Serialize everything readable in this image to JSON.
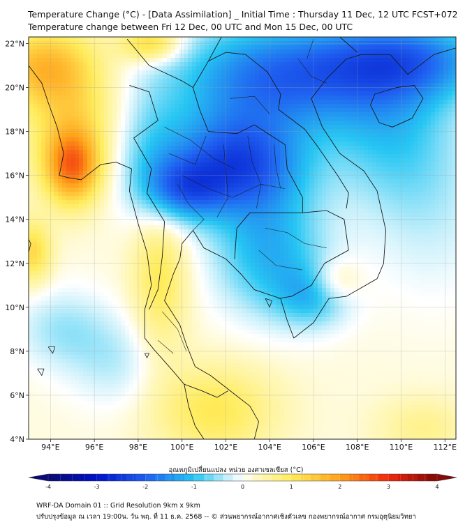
{
  "title_line1": "Temperature Change (°C) - [Data Assimilation] _ Initial Time : Thursday 11 Dec, 12 UTC FCST+072",
  "title_line2": "Temperature change between Fri 12 Dec, 00 UTC and Mon 15 Dec, 00 UTC",
  "map": {
    "lon_range": [
      93,
      112.5
    ],
    "lat_range": [
      4,
      22.3
    ],
    "lon_ticks": [
      {
        "v": 94,
        "label": "94°E"
      },
      {
        "v": 96,
        "label": "96°E"
      },
      {
        "v": 98,
        "label": "98°E"
      },
      {
        "v": 100,
        "label": "100°E"
      },
      {
        "v": 102,
        "label": "102°E"
      },
      {
        "v": 104,
        "label": "104°E"
      },
      {
        "v": 106,
        "label": "106°E"
      },
      {
        "v": 108,
        "label": "108°E"
      },
      {
        "v": 110,
        "label": "110°E"
      },
      {
        "v": 112,
        "label": "112°E"
      }
    ],
    "lat_ticks": [
      {
        "v": 4,
        "label": "4°N"
      },
      {
        "v": 6,
        "label": "6°N"
      },
      {
        "v": 8,
        "label": "8°N"
      },
      {
        "v": 10,
        "label": "10°N"
      },
      {
        "v": 12,
        "label": "12°N"
      },
      {
        "v": 14,
        "label": "14°N"
      },
      {
        "v": 16,
        "label": "16°N"
      },
      {
        "v": 18,
        "label": "18°N"
      },
      {
        "v": 20,
        "label": "20°N"
      },
      {
        "v": 22,
        "label": "22°N"
      }
    ],
    "field_blobs": [
      {
        "lon": 102.5,
        "lat": 16.5,
        "sx": 2.2,
        "sy": 1.6,
        "a": -2.3
      },
      {
        "lon": 104.5,
        "lat": 20.5,
        "sx": 3.5,
        "sy": 1.8,
        "a": -2.0
      },
      {
        "lon": 110.5,
        "lat": 21.3,
        "sx": 2.8,
        "sy": 1.3,
        "a": -1.6
      },
      {
        "lon": 100.0,
        "lat": 15.3,
        "sx": 1.3,
        "sy": 1.0,
        "a": -1.4
      },
      {
        "lon": 104.0,
        "lat": 12.5,
        "sx": 1.8,
        "sy": 2.0,
        "a": -1.3
      },
      {
        "lon": 106.0,
        "lat": 10.5,
        "sx": 1.2,
        "sy": 1.0,
        "a": -1.0
      },
      {
        "lon": 109.5,
        "lat": 18.0,
        "sx": 2.0,
        "sy": 2.5,
        "a": -0.9
      },
      {
        "lon": 111.5,
        "lat": 14.5,
        "sx": 2.0,
        "sy": 3.0,
        "a": -0.4
      },
      {
        "lon": 98.5,
        "lat": 17.0,
        "sx": 1.2,
        "sy": 2.0,
        "a": -0.7
      },
      {
        "lon": 95.0,
        "lat": 16.4,
        "sx": 0.9,
        "sy": 1.2,
        "a": 2.0
      },
      {
        "lon": 95.0,
        "lat": 19.0,
        "sx": 1.6,
        "sy": 2.2,
        "a": 1.0
      },
      {
        "lon": 93.5,
        "lat": 21.0,
        "sx": 1.5,
        "sy": 1.2,
        "a": 1.2
      },
      {
        "lon": 98.6,
        "lat": 22.0,
        "sx": 1.0,
        "sy": 0.6,
        "a": 1.3
      },
      {
        "lon": 99.0,
        "lat": 11.3,
        "sx": 0.9,
        "sy": 2.5,
        "a": 0.9
      },
      {
        "lon": 101.5,
        "lat": 5.3,
        "sx": 2.0,
        "sy": 1.5,
        "a": 0.9
      },
      {
        "lon": 107.0,
        "lat": 11.2,
        "sx": 0.8,
        "sy": 0.7,
        "a": 0.7
      },
      {
        "lon": 94.5,
        "lat": 9.0,
        "sx": 1.5,
        "sy": 1.3,
        "a": -0.6
      },
      {
        "lon": 97.0,
        "lat": 7.5,
        "sx": 1.5,
        "sy": 1.5,
        "a": -0.5
      },
      {
        "lon": 111.0,
        "lat": 4.5,
        "sx": 1.5,
        "sy": 1.0,
        "a": 0.5
      },
      {
        "lon": 93.2,
        "lat": 12.5,
        "sx": 0.6,
        "sy": 1.0,
        "a": 1.1
      }
    ],
    "coastline": [
      [
        93.0,
        21.0
      ],
      [
        93.6,
        20.2
      ],
      [
        93.9,
        19.3
      ],
      [
        94.3,
        18.2
      ],
      [
        94.6,
        17.0
      ],
      [
        94.4,
        16.0
      ],
      [
        94.8,
        15.9
      ],
      [
        95.4,
        15.8
      ],
      [
        96.3,
        16.5
      ],
      [
        97.0,
        16.6
      ],
      [
        97.7,
        16.3
      ],
      [
        97.6,
        15.3
      ],
      [
        98.0,
        13.8
      ],
      [
        98.4,
        12.5
      ],
      [
        98.6,
        11.0
      ],
      [
        98.3,
        9.9
      ],
      [
        98.3,
        8.6
      ],
      [
        98.7,
        8.1
      ],
      [
        99.5,
        7.2
      ],
      [
        100.1,
        6.5
      ],
      [
        100.3,
        5.5
      ],
      [
        100.6,
        4.6
      ],
      [
        101.0,
        4.0
      ]
    ],
    "coastline_east": [
      [
        103.3,
        4.0
      ],
      [
        103.5,
        4.8
      ],
      [
        103.1,
        5.5
      ],
      [
        102.2,
        6.2
      ],
      [
        101.3,
        6.9
      ],
      [
        100.6,
        7.3
      ],
      [
        100.2,
        8.3
      ],
      [
        99.9,
        9.2
      ],
      [
        99.2,
        10.3
      ],
      [
        99.6,
        11.5
      ],
      [
        99.9,
        12.2
      ],
      [
        100.0,
        12.9
      ],
      [
        100.5,
        13.5
      ],
      [
        101.0,
        12.7
      ],
      [
        102.0,
        12.2
      ],
      [
        102.7,
        11.5
      ],
      [
        103.3,
        10.8
      ],
      [
        104.5,
        10.4
      ],
      [
        104.8,
        9.4
      ],
      [
        105.1,
        8.6
      ],
      [
        106.0,
        9.3
      ],
      [
        106.7,
        10.4
      ],
      [
        107.5,
        10.5
      ],
      [
        108.9,
        11.3
      ],
      [
        109.2,
        12.0
      ],
      [
        109.3,
        13.5
      ],
      [
        108.9,
        15.3
      ],
      [
        108.3,
        16.2
      ],
      [
        107.2,
        17.0
      ],
      [
        106.4,
        18.2
      ],
      [
        105.9,
        19.5
      ],
      [
        106.6,
        20.4
      ],
      [
        107.5,
        21.3
      ],
      [
        108.2,
        21.5
      ],
      [
        109.5,
        21.5
      ],
      [
        110.3,
        20.6
      ],
      [
        111.5,
        21.5
      ],
      [
        112.5,
        21.8
      ]
    ],
    "hainan": [
      [
        108.6,
        19.2
      ],
      [
        109.0,
        18.4
      ],
      [
        109.6,
        18.2
      ],
      [
        110.5,
        18.6
      ],
      [
        111.0,
        19.5
      ],
      [
        110.6,
        20.1
      ],
      [
        109.8,
        20.0
      ],
      [
        108.8,
        19.7
      ],
      [
        108.6,
        19.2
      ]
    ],
    "borders": [
      [
        [
          97.5,
          22.2
        ],
        [
          98.5,
          21.0
        ],
        [
          100.0,
          20.3
        ],
        [
          100.5,
          20.0
        ],
        [
          101.2,
          21.2
        ],
        [
          101.8,
          22.3
        ]
      ],
      [
        [
          97.6,
          20.1
        ],
        [
          98.5,
          19.8
        ],
        [
          98.9,
          18.5
        ],
        [
          97.8,
          17.7
        ],
        [
          98.6,
          16.3
        ],
        [
          98.4,
          15.2
        ],
        [
          99.2,
          13.9
        ],
        [
          99.1,
          12.3
        ],
        [
          98.9,
          10.8
        ],
        [
          98.5,
          9.9
        ]
      ],
      [
        [
          100.5,
          20.0
        ],
        [
          100.8,
          19.0
        ],
        [
          101.2,
          18.0
        ],
        [
          102.5,
          17.9
        ],
        [
          103.3,
          18.3
        ],
        [
          104.7,
          17.4
        ],
        [
          104.8,
          16.3
        ],
        [
          105.5,
          15.0
        ],
        [
          105.5,
          14.3
        ],
        [
          104.3,
          14.3
        ],
        [
          103.1,
          14.3
        ],
        [
          102.5,
          13.6
        ],
        [
          102.4,
          12.2
        ]
      ],
      [
        [
          105.5,
          14.3
        ],
        [
          106.6,
          14.4
        ],
        [
          107.4,
          14.0
        ],
        [
          107.6,
          12.6
        ],
        [
          106.5,
          12.0
        ],
        [
          105.9,
          11.0
        ],
        [
          105.0,
          10.5
        ],
        [
          104.4,
          10.4
        ]
      ],
      [
        [
          101.2,
          21.2
        ],
        [
          102.0,
          21.6
        ],
        [
          102.9,
          21.5
        ],
        [
          103.9,
          20.7
        ],
        [
          104.5,
          19.7
        ],
        [
          104.4,
          19.0
        ],
        [
          105.6,
          18.1
        ],
        [
          106.2,
          17.3
        ],
        [
          107.1,
          16.0
        ],
        [
          107.6,
          15.2
        ],
        [
          107.5,
          14.5
        ]
      ],
      [
        [
          102.9,
          22.3
        ],
        [
          103.6,
          22.7
        ],
        [
          104.8,
          22.8
        ],
        [
          106.2,
          22.9
        ],
        [
          107.2,
          22.3
        ],
        [
          108.0,
          21.6
        ]
      ],
      [
        [
          100.1,
          6.5
        ],
        [
          100.9,
          6.2
        ],
        [
          101.6,
          5.9
        ],
        [
          102.1,
          6.2
        ]
      ]
    ],
    "province_lines": [
      [
        [
          99.2,
          18.2
        ],
        [
          100.4,
          17.6
        ],
        [
          101.4,
          16.8
        ],
        [
          102.4,
          16.3
        ]
      ],
      [
        [
          100.0,
          16.0
        ],
        [
          101.2,
          15.4
        ],
        [
          102.3,
          15.0
        ],
        [
          103.6,
          15.6
        ],
        [
          104.7,
          15.4
        ]
      ],
      [
        [
          101.9,
          17.4
        ],
        [
          102.0,
          16.2
        ],
        [
          102.1,
          15.0
        ],
        [
          101.6,
          14.1
        ]
      ],
      [
        [
          103.0,
          17.8
        ],
        [
          103.2,
          16.6
        ],
        [
          103.6,
          15.6
        ],
        [
          103.4,
          14.5
        ]
      ],
      [
        [
          104.2,
          17.4
        ],
        [
          104.3,
          16.3
        ],
        [
          104.5,
          15.4
        ]
      ],
      [
        [
          99.4,
          17.0
        ],
        [
          100.6,
          16.5
        ],
        [
          101.1,
          17.8
        ]
      ],
      [
        [
          99.8,
          15.6
        ],
        [
          100.3,
          14.7
        ],
        [
          101.0,
          14.0
        ],
        [
          100.5,
          13.5
        ]
      ],
      [
        [
          102.2,
          19.5
        ],
        [
          103.3,
          19.6
        ],
        [
          104.0,
          18.8
        ]
      ],
      [
        [
          105.3,
          21.3
        ],
        [
          105.9,
          20.5
        ],
        [
          106.6,
          20.2
        ]
      ],
      [
        [
          106.0,
          22.2
        ],
        [
          105.7,
          21.3
        ]
      ],
      [
        [
          103.8,
          13.6
        ],
        [
          104.8,
          13.4
        ],
        [
          105.6,
          12.9
        ],
        [
          106.6,
          12.7
        ]
      ],
      [
        [
          103.5,
          12.6
        ],
        [
          104.3,
          11.9
        ],
        [
          105.5,
          11.7
        ]
      ],
      [
        [
          99.1,
          9.8
        ],
        [
          99.8,
          9.0
        ],
        [
          100.2,
          8.0
        ]
      ],
      [
        [
          98.9,
          8.5
        ],
        [
          99.6,
          7.9
        ]
      ]
    ],
    "islands": [
      [
        [
          93.9,
          8.2
        ],
        [
          94.1,
          7.9
        ],
        [
          94.2,
          8.2
        ],
        [
          93.9,
          8.2
        ]
      ],
      [
        [
          93.4,
          7.2
        ],
        [
          93.6,
          6.9
        ],
        [
          93.7,
          7.2
        ],
        [
          93.4,
          7.2
        ]
      ],
      [
        [
          92.9,
          13.3
        ],
        [
          93.1,
          12.9
        ],
        [
          93.0,
          12.5
        ]
      ],
      [
        [
          103.8,
          10.4
        ],
        [
          104.0,
          10.0
        ],
        [
          104.1,
          10.3
        ],
        [
          103.8,
          10.4
        ]
      ],
      [
        [
          98.3,
          7.9
        ],
        [
          98.4,
          7.7
        ],
        [
          98.5,
          7.9
        ],
        [
          98.3,
          7.9
        ]
      ]
    ]
  },
  "colorbar": {
    "title": "อุณหภูมิเปลี่ยนแปลง หน่วย องศาเซลเซียส (°C)",
    "min": -4,
    "max": 4,
    "ticks": [
      {
        "v": -4,
        "label": "-4"
      },
      {
        "v": -3,
        "label": "-3"
      },
      {
        "v": -2,
        "label": "-2"
      },
      {
        "v": -1,
        "label": "-1"
      },
      {
        "v": 0,
        "label": "0"
      },
      {
        "v": 1,
        "label": "1"
      },
      {
        "v": 2,
        "label": "2"
      },
      {
        "v": 3,
        "label": "3"
      },
      {
        "v": 4,
        "label": "4"
      }
    ],
    "stops": [
      {
        "v": -4,
        "color": "#0a0a6e"
      },
      {
        "v": -3,
        "color": "#0011c8"
      },
      {
        "v": -2,
        "color": "#1f5ff0"
      },
      {
        "v": -1,
        "color": "#26c6f3"
      },
      {
        "v": -0.3,
        "color": "#c8f0fb"
      },
      {
        "v": 0,
        "color": "#ffffff"
      },
      {
        "v": 0.3,
        "color": "#fff8c0"
      },
      {
        "v": 1,
        "color": "#ffec5c"
      },
      {
        "v": 2,
        "color": "#ffa21a"
      },
      {
        "v": 3,
        "color": "#f0280c"
      },
      {
        "v": 4,
        "color": "#7d0808"
      }
    ]
  },
  "footer_line1": "WRF-DA Domain 01 :: Grid Resolution 9km x 9km",
  "footer_line2": "ปรับปรุงข้อมูล ณ เวลา 19:00น. วัน พฤ. ที่ 11 ธ.ค. 2568 -- © ส่วนพยากรณ์อากาศเชิงตัวเลข กองพยากรณ์อากาศ กรมอุตุนิยมวิทยา"
}
